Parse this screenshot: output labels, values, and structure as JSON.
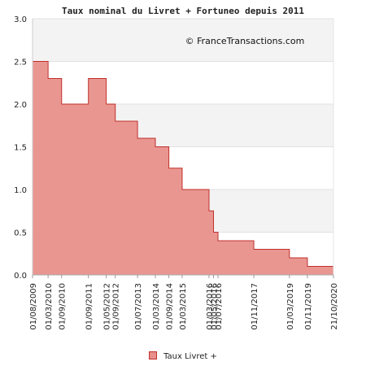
{
  "chart_data": {
    "type": "area",
    "title": "Taux nominal du Livret + Fortuneo depuis 2011",
    "watermark": "© FranceTransactions.com",
    "ylim": [
      0,
      3
    ],
    "yticks": [
      "0.0",
      "0.5",
      "1.0",
      "1.5",
      "2.0",
      "2.5",
      "3.0"
    ],
    "xlim": [
      "2009-08-01",
      "2020-10-21"
    ],
    "xticks": [
      {
        "label": "01/08/2009",
        "date": "2009-08-01"
      },
      {
        "label": "01/03/2010",
        "date": "2010-03-01"
      },
      {
        "label": "01/09/2010",
        "date": "2010-09-01"
      },
      {
        "label": "01/09/2011",
        "date": "2011-09-01"
      },
      {
        "label": "01/05/2012",
        "date": "2012-05-01"
      },
      {
        "label": "01/09/2012",
        "date": "2012-09-01"
      },
      {
        "label": "01/07/2013",
        "date": "2013-07-01"
      },
      {
        "label": "01/03/2014",
        "date": "2014-03-01"
      },
      {
        "label": "01/09/2014",
        "date": "2014-09-01"
      },
      {
        "label": "01/03/2015",
        "date": "2015-03-01"
      },
      {
        "label": "01/03/2016",
        "date": "2016-03-01"
      },
      {
        "label": "01/05/2016",
        "date": "2016-05-01"
      },
      {
        "label": "01/07/2016",
        "date": "2016-07-01"
      },
      {
        "label": "01/11/2017",
        "date": "2017-11-01"
      },
      {
        "label": "01/03/2019",
        "date": "2019-03-01"
      },
      {
        "label": "01/11/2019",
        "date": "2019-11-01"
      },
      {
        "label": "21/10/2020",
        "date": "2020-10-21"
      }
    ],
    "series": [
      {
        "name": "Taux Livret +",
        "color": "#e8908b",
        "line_color": "#c0302b",
        "steps": [
          {
            "date": "2009-08-01",
            "value": 2.5
          },
          {
            "date": "2010-03-01",
            "value": 2.3
          },
          {
            "date": "2010-09-01",
            "value": 2.0
          },
          {
            "date": "2011-09-01",
            "value": 2.3
          },
          {
            "date": "2012-05-01",
            "value": 2.0
          },
          {
            "date": "2012-09-01",
            "value": 1.8
          },
          {
            "date": "2013-07-01",
            "value": 1.6
          },
          {
            "date": "2014-03-01",
            "value": 1.5
          },
          {
            "date": "2014-09-01",
            "value": 1.25
          },
          {
            "date": "2015-03-01",
            "value": 1.0
          },
          {
            "date": "2016-03-01",
            "value": 0.75
          },
          {
            "date": "2016-05-01",
            "value": 0.5
          },
          {
            "date": "2016-07-01",
            "value": 0.4
          },
          {
            "date": "2017-11-01",
            "value": 0.3
          },
          {
            "date": "2019-03-01",
            "value": 0.2
          },
          {
            "date": "2019-11-01",
            "value": 0.1
          },
          {
            "date": "2020-10-21",
            "value": 0.1
          }
        ]
      }
    ],
    "grid": true,
    "legend": "bottom-center"
  }
}
